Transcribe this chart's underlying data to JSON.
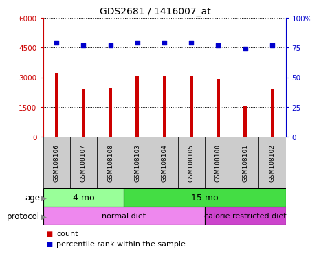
{
  "title": "GDS2681 / 1416007_at",
  "samples": [
    "GSM108106",
    "GSM108107",
    "GSM108108",
    "GSM108103",
    "GSM108104",
    "GSM108105",
    "GSM108100",
    "GSM108101",
    "GSM108102"
  ],
  "counts": [
    3200,
    2400,
    2450,
    3050,
    3060,
    3050,
    2900,
    1550,
    2400
  ],
  "percentile_ranks": [
    79,
    77,
    77,
    79,
    79,
    79,
    77,
    74,
    77
  ],
  "ylim_left": [
    0,
    6000
  ],
  "ylim_right": [
    0,
    100
  ],
  "yticks_left": [
    0,
    1500,
    3000,
    4500,
    6000
  ],
  "yticks_right": [
    0,
    25,
    50,
    75,
    100
  ],
  "ytick_labels_right": [
    "0",
    "25",
    "50",
    "75",
    "100%"
  ],
  "bar_color": "#cc0000",
  "dot_color": "#0000cc",
  "age_groups": [
    {
      "label": "4 mo",
      "start": 0,
      "end": 3,
      "color": "#99ff99"
    },
    {
      "label": "15 mo",
      "start": 3,
      "end": 9,
      "color": "#44dd44"
    }
  ],
  "protocol_groups": [
    {
      "label": "normal diet",
      "start": 0,
      "end": 6,
      "color": "#ee88ee"
    },
    {
      "label": "calorie restricted diet",
      "start": 6,
      "end": 9,
      "color": "#cc44cc"
    }
  ],
  "label_age": "age",
  "label_protocol": "protocol",
  "legend_count_color": "#cc0000",
  "legend_percentile_color": "#0000cc",
  "legend_count_label": "count",
  "legend_percentile_label": "percentile rank within the sample",
  "background_color": "#ffffff",
  "plot_bg_color": "#ffffff",
  "xlabel_bg_color": "#cccccc",
  "bar_width": 0.12
}
